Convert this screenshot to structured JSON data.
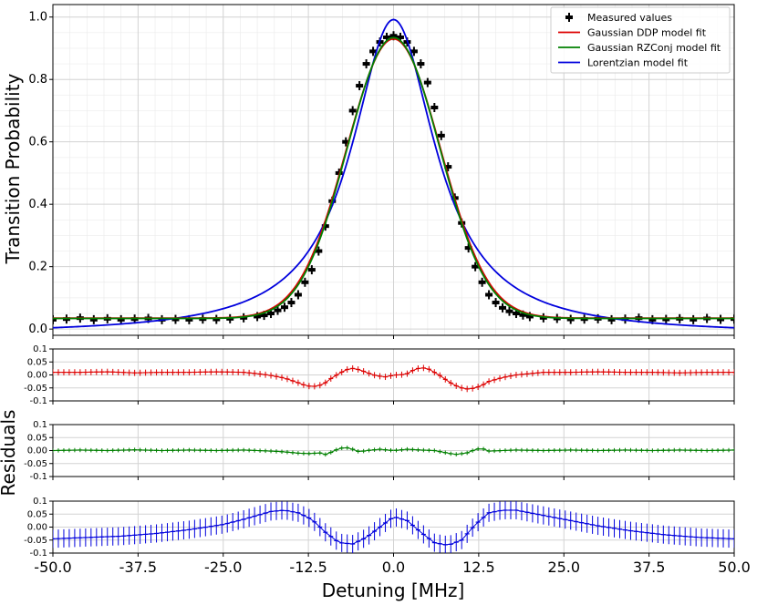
{
  "figure": {
    "ylabel_main": "Transition Probability",
    "ylabel_residuals": "Residuals",
    "xlabel": "Detuning [MHz]"
  },
  "chart_data": [
    {
      "type": "scatter",
      "panel": "main",
      "xlim": [
        -50,
        50
      ],
      "ylim": [
        -0.02,
        1.04
      ],
      "grid": true,
      "xticks": [
        -50,
        -37.5,
        -25,
        -12.5,
        0,
        12.5,
        25,
        37.5,
        50
      ],
      "yticks": [
        0.0,
        0.2,
        0.4,
        0.6,
        0.8,
        1.0
      ],
      "ytick_labels": [
        "0.0",
        "0.2",
        "0.4",
        "0.6",
        "0.8",
        "1.0"
      ],
      "legend_position": "top-right",
      "legend": [
        "Measured values",
        "Gaussian DDP model fit",
        "Gaussian RZConj model fit",
        "Lorentzian model fit"
      ],
      "series": [
        {
          "name": "Measured values",
          "kind": "errorbar-markers",
          "color": "#000000",
          "x": [
            -50,
            -48,
            -46,
            -44,
            -42,
            -40,
            -38,
            -36,
            -34,
            -32,
            -30,
            -28,
            -26,
            -24,
            -22,
            -20,
            -19,
            -18,
            -17,
            -16,
            -15,
            -14,
            -13,
            -12,
            -11,
            -10,
            -9,
            -8,
            -7,
            -6,
            -5,
            -4,
            -3,
            -2,
            -1,
            0,
            1,
            2,
            3,
            4,
            5,
            6,
            7,
            8,
            9,
            10,
            11,
            12,
            13,
            14,
            15,
            16,
            17,
            18,
            19,
            20,
            22,
            24,
            26,
            28,
            30,
            32,
            34,
            36,
            38,
            40,
            42,
            44,
            46,
            48,
            50
          ],
          "y": [
            0.03,
            0.032,
            0.035,
            0.03,
            0.033,
            0.03,
            0.032,
            0.034,
            0.03,
            0.031,
            0.03,
            0.032,
            0.031,
            0.033,
            0.036,
            0.04,
            0.044,
            0.05,
            0.06,
            0.07,
            0.085,
            0.11,
            0.15,
            0.19,
            0.25,
            0.33,
            0.41,
            0.5,
            0.6,
            0.7,
            0.78,
            0.85,
            0.89,
            0.92,
            0.935,
            0.94,
            0.935,
            0.92,
            0.89,
            0.85,
            0.79,
            0.71,
            0.62,
            0.52,
            0.42,
            0.34,
            0.26,
            0.2,
            0.15,
            0.11,
            0.085,
            0.068,
            0.057,
            0.05,
            0.045,
            0.04,
            0.036,
            0.034,
            0.031,
            0.032,
            0.033,
            0.03,
            0.032,
            0.035,
            0.03,
            0.031,
            0.033,
            0.03,
            0.034,
            0.031,
            0.032
          ]
        },
        {
          "name": "Gaussian DDP model fit",
          "kind": "line",
          "color": "#dd0000",
          "model": "gaussian",
          "amplitude": 0.895,
          "center": 0.0,
          "sigma": 6.9,
          "offset": 0.035
        },
        {
          "name": "Gaussian RZConj model fit",
          "kind": "line",
          "color": "#008000",
          "model": "gaussian",
          "amplitude": 0.9,
          "center": 0.0,
          "sigma": 6.8,
          "offset": 0.034
        },
        {
          "name": "Lorentzian model fit",
          "kind": "line",
          "color": "#0000dd",
          "model": "lorentzian",
          "amplitude": 1.01,
          "center": 0.0,
          "hwhm": 7.5,
          "offset": -0.018
        }
      ]
    },
    {
      "type": "scatter",
      "panel": "residuals-gaussian-ddp",
      "xlim": [
        -50,
        50
      ],
      "ylim": [
        -0.1,
        0.1
      ],
      "grid": true,
      "yticks": [
        -0.1,
        -0.05,
        0.0,
        0.05,
        0.1
      ],
      "ytick_labels": [
        "-0.1",
        "-0.05",
        "0.00",
        "0.05",
        "0.1"
      ],
      "series": [
        {
          "name": "Gaussian DDP model fit",
          "color": "#dd0000",
          "error": 0.012,
          "x": [
            -50,
            -46,
            -42,
            -38,
            -34,
            -30,
            -26,
            -22,
            -20,
            -18,
            -16,
            -14,
            -13,
            -12,
            -11,
            -10,
            -9,
            -8,
            -7,
            -6,
            -5,
            -4,
            -3,
            -2,
            -1,
            0,
            1,
            2,
            3,
            4,
            5,
            6,
            7,
            8,
            9,
            10,
            11,
            12,
            13,
            14,
            16,
            18,
            20,
            22,
            26,
            30,
            34,
            38,
            42,
            46,
            50
          ],
          "y": [
            0.01,
            0.01,
            0.012,
            0.008,
            0.01,
            0.01,
            0.012,
            0.01,
            0.005,
            -0.002,
            -0.012,
            -0.03,
            -0.04,
            -0.045,
            -0.042,
            -0.03,
            -0.01,
            0.005,
            0.02,
            0.025,
            0.02,
            0.01,
            0.0,
            -0.005,
            -0.008,
            0.0,
            0.0,
            0.005,
            0.02,
            0.028,
            0.025,
            0.01,
            -0.005,
            -0.025,
            -0.04,
            -0.05,
            -0.055,
            -0.05,
            -0.04,
            -0.025,
            -0.01,
            0.0,
            0.005,
            0.01,
            0.01,
            0.012,
            0.01,
            0.01,
            0.008,
            0.01,
            0.01
          ]
        }
      ]
    },
    {
      "type": "scatter",
      "panel": "residuals-gaussian-rzconj",
      "xlim": [
        -50,
        50
      ],
      "ylim": [
        -0.1,
        0.1
      ],
      "grid": true,
      "yticks": [
        -0.1,
        -0.05,
        0.0,
        0.05,
        0.1
      ],
      "ytick_labels": [
        "-0.1",
        "-0.05",
        "0.00",
        "0.05",
        "0.1"
      ],
      "series": [
        {
          "name": "Gaussian RZConj model fit",
          "color": "#008000",
          "error": 0.008,
          "x": [
            -50,
            -46,
            -42,
            -38,
            -34,
            -30,
            -26,
            -22,
            -18,
            -16,
            -14,
            -12,
            -11,
            -10,
            -9,
            -8,
            -7,
            -6,
            -5,
            -4,
            -2,
            0,
            2,
            4,
            6,
            8,
            9,
            10,
            11,
            12,
            13,
            14,
            16,
            18,
            22,
            26,
            30,
            34,
            38,
            42,
            46,
            50
          ],
          "y": [
            0.0,
            0.002,
            0.0,
            0.003,
            0.0,
            0.002,
            0.0,
            0.002,
            -0.002,
            -0.005,
            -0.01,
            -0.012,
            -0.008,
            -0.015,
            -0.005,
            0.008,
            0.012,
            0.005,
            -0.005,
            0.0,
            0.005,
            0.0,
            0.005,
            0.002,
            0.0,
            -0.01,
            -0.015,
            -0.012,
            -0.008,
            0.005,
            0.008,
            -0.002,
            0.0,
            0.002,
            0.0,
            0.002,
            0.0,
            0.002,
            0.0,
            0.002,
            0.0,
            0.002
          ]
        }
      ]
    },
    {
      "type": "scatter",
      "panel": "residuals-lorentzian",
      "xlim": [
        -50,
        50
      ],
      "ylim": [
        -0.1,
        0.1
      ],
      "grid": true,
      "yticks": [
        -0.1,
        -0.05,
        0.0,
        0.05,
        0.1
      ],
      "ytick_labels": [
        "-0.1",
        "-0.05",
        "0.00",
        "0.05",
        "0.1"
      ],
      "series": [
        {
          "name": "Lorentzian model fit",
          "color": "#0000dd",
          "error": 0.035,
          "x": [
            -50,
            -45,
            -40,
            -35,
            -30,
            -25,
            -22,
            -20,
            -18,
            -16,
            -14,
            -12,
            -10,
            -8,
            -6,
            -4,
            -2,
            0,
            2,
            4,
            6,
            8,
            10,
            12,
            14,
            16,
            18,
            20,
            22,
            25,
            30,
            35,
            40,
            45,
            50
          ],
          "y": [
            -0.045,
            -0.04,
            -0.035,
            -0.025,
            -0.01,
            0.01,
            0.03,
            0.045,
            0.06,
            0.065,
            0.055,
            0.03,
            -0.02,
            -0.06,
            -0.065,
            -0.04,
            0.0,
            0.04,
            0.025,
            -0.02,
            -0.06,
            -0.07,
            -0.05,
            0.01,
            0.055,
            0.065,
            0.065,
            0.055,
            0.045,
            0.03,
            0.005,
            -0.015,
            -0.03,
            -0.04,
            -0.045
          ]
        }
      ]
    }
  ]
}
